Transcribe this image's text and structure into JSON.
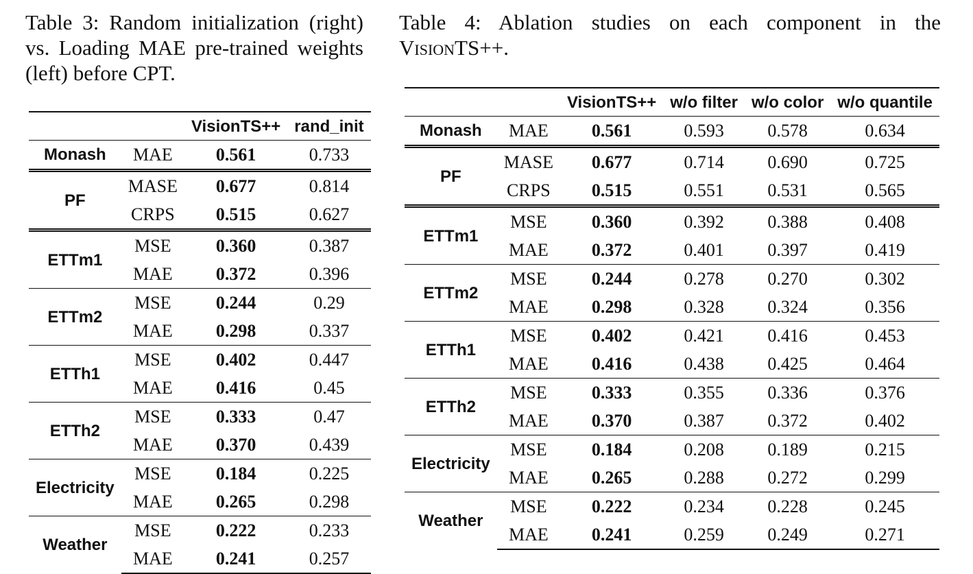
{
  "table3": {
    "caption": "Table 3: Random initialization (right) vs. Loading MAE pre-trained weights (left) before CPT.",
    "headers": [
      "",
      "",
      "VisionTS++",
      "rand_init"
    ],
    "groups": [
      {
        "dataset": "Monash",
        "rows": [
          {
            "metric": "MAE",
            "v": "0.561",
            "r": "0.733"
          }
        ]
      },
      {
        "dataset": "PF",
        "rows": [
          {
            "metric": "MASE",
            "v": "0.677",
            "r": "0.814"
          },
          {
            "metric": "CRPS",
            "v": "0.515",
            "r": "0.627"
          }
        ]
      },
      {
        "dataset": "ETTm1",
        "rows": [
          {
            "metric": "MSE",
            "v": "0.360",
            "r": "0.387"
          },
          {
            "metric": "MAE",
            "v": "0.372",
            "r": "0.396"
          }
        ]
      },
      {
        "dataset": "ETTm2",
        "rows": [
          {
            "metric": "MSE",
            "v": "0.244",
            "r": "0.29"
          },
          {
            "metric": "MAE",
            "v": "0.298",
            "r": "0.337"
          }
        ]
      },
      {
        "dataset": "ETTh1",
        "rows": [
          {
            "metric": "MSE",
            "v": "0.402",
            "r": "0.447"
          },
          {
            "metric": "MAE",
            "v": "0.416",
            "r": "0.45"
          }
        ]
      },
      {
        "dataset": "ETTh2",
        "rows": [
          {
            "metric": "MSE",
            "v": "0.333",
            "r": "0.47"
          },
          {
            "metric": "MAE",
            "v": "0.370",
            "r": "0.439"
          }
        ]
      },
      {
        "dataset": "Electricity",
        "rows": [
          {
            "metric": "MSE",
            "v": "0.184",
            "r": "0.225"
          },
          {
            "metric": "MAE",
            "v": "0.265",
            "r": "0.298"
          }
        ]
      },
      {
        "dataset": "Weather",
        "rows": [
          {
            "metric": "MSE",
            "v": "0.222",
            "r": "0.233"
          },
          {
            "metric": "MAE",
            "v": "0.241",
            "r": "0.257"
          }
        ]
      }
    ]
  },
  "table4": {
    "caption_prefix": "Table 4:  Ablation studies on each component in the ",
    "caption_name": "VisionTS++",
    "caption_suffix": ".",
    "headers": [
      "",
      "",
      "VisionTS++",
      "w/o filter",
      "w/o color",
      "w/o quantile"
    ],
    "groups": [
      {
        "dataset": "Monash",
        "rows": [
          {
            "metric": "MAE",
            "v": [
              "0.561",
              "0.593",
              "0.578",
              "0.634"
            ]
          }
        ]
      },
      {
        "dataset": "PF",
        "rows": [
          {
            "metric": "MASE",
            "v": [
              "0.677",
              "0.714",
              "0.690",
              "0.725"
            ]
          },
          {
            "metric": "CRPS",
            "v": [
              "0.515",
              "0.551",
              "0.531",
              "0.565"
            ]
          }
        ]
      },
      {
        "dataset": "ETTm1",
        "rows": [
          {
            "metric": "MSE",
            "v": [
              "0.360",
              "0.392",
              "0.388",
              "0.408"
            ]
          },
          {
            "metric": "MAE",
            "v": [
              "0.372",
              "0.401",
              "0.397",
              "0.419"
            ]
          }
        ]
      },
      {
        "dataset": "ETTm2",
        "rows": [
          {
            "metric": "MSE",
            "v": [
              "0.244",
              "0.278",
              "0.270",
              "0.302"
            ]
          },
          {
            "metric": "MAE",
            "v": [
              "0.298",
              "0.328",
              "0.324",
              "0.356"
            ]
          }
        ]
      },
      {
        "dataset": "ETTh1",
        "rows": [
          {
            "metric": "MSE",
            "v": [
              "0.402",
              "0.421",
              "0.416",
              "0.453"
            ]
          },
          {
            "metric": "MAE",
            "v": [
              "0.416",
              "0.438",
              "0.425",
              "0.464"
            ]
          }
        ]
      },
      {
        "dataset": "ETTh2",
        "rows": [
          {
            "metric": "MSE",
            "v": [
              "0.333",
              "0.355",
              "0.336",
              "0.376"
            ]
          },
          {
            "metric": "MAE",
            "v": [
              "0.370",
              "0.387",
              "0.372",
              "0.402"
            ]
          }
        ]
      },
      {
        "dataset": "Electricity",
        "rows": [
          {
            "metric": "MSE",
            "v": [
              "0.184",
              "0.208",
              "0.189",
              "0.215"
            ]
          },
          {
            "metric": "MAE",
            "v": [
              "0.265",
              "0.288",
              "0.272",
              "0.299"
            ]
          }
        ]
      },
      {
        "dataset": "Weather",
        "rows": [
          {
            "metric": "MSE",
            "v": [
              "0.222",
              "0.234",
              "0.228",
              "0.245"
            ]
          },
          {
            "metric": "MAE",
            "v": [
              "0.241",
              "0.259",
              "0.249",
              "0.271"
            ]
          }
        ]
      }
    ]
  }
}
